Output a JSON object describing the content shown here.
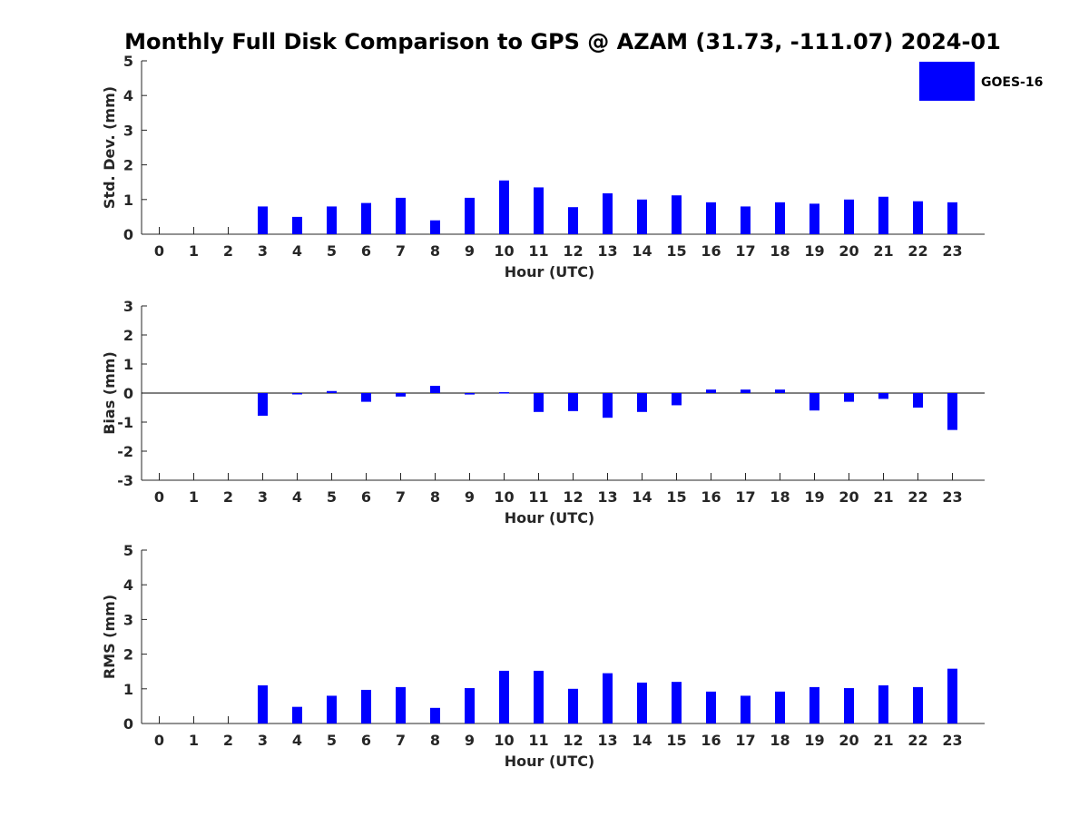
{
  "title": "Monthly Full Disk Comparison to GPS @ AZAM (31.73, -111.07) 2024-01",
  "legend": {
    "label": "GOES-16",
    "color": "#0000ff"
  },
  "chart_data": [
    {
      "type": "bar",
      "xlabel": "Hour (UTC)",
      "ylabel": "Std. Dev. (mm)",
      "ylim": [
        0,
        5
      ],
      "yticks": [
        0,
        1,
        2,
        3,
        4,
        5
      ],
      "categories": [
        0,
        1,
        2,
        3,
        4,
        5,
        6,
        7,
        8,
        9,
        10,
        11,
        12,
        13,
        14,
        15,
        16,
        17,
        18,
        19,
        20,
        21,
        22,
        23
      ],
      "series": [
        {
          "name": "GOES-16",
          "values": [
            null,
            null,
            null,
            0.8,
            0.5,
            0.8,
            0.9,
            1.05,
            0.4,
            1.05,
            1.55,
            1.35,
            0.78,
            1.18,
            1.0,
            1.12,
            0.92,
            0.8,
            0.92,
            0.88,
            1.0,
            1.08,
            0.95,
            0.92
          ]
        }
      ],
      "legend": "top-right"
    },
    {
      "type": "bar",
      "xlabel": "Hour (UTC)",
      "ylabel": "Bias (mm)",
      "ylim": [
        -3,
        3
      ],
      "yticks": [
        -3,
        -2,
        -1,
        0,
        1,
        2,
        3
      ],
      "categories": [
        0,
        1,
        2,
        3,
        4,
        5,
        6,
        7,
        8,
        9,
        10,
        11,
        12,
        13,
        14,
        15,
        16,
        17,
        18,
        19,
        20,
        21,
        22,
        23
      ],
      "series": [
        {
          "name": "GOES-16",
          "values": [
            null,
            null,
            null,
            -0.78,
            0.0,
            0.07,
            -0.3,
            -0.12,
            0.25,
            -0.05,
            0.03,
            -0.65,
            -0.62,
            -0.85,
            -0.65,
            -0.42,
            0.12,
            0.12,
            0.12,
            -0.6,
            -0.3,
            -0.2,
            -0.5,
            -1.27
          ]
        }
      ]
    },
    {
      "type": "bar",
      "xlabel": "Hour (UTC)",
      "ylabel": "RMS (mm)",
      "ylim": [
        0,
        5
      ],
      "yticks": [
        0,
        1,
        2,
        3,
        4,
        5
      ],
      "categories": [
        0,
        1,
        2,
        3,
        4,
        5,
        6,
        7,
        8,
        9,
        10,
        11,
        12,
        13,
        14,
        15,
        16,
        17,
        18,
        19,
        20,
        21,
        22,
        23
      ],
      "series": [
        {
          "name": "GOES-16",
          "values": [
            null,
            null,
            null,
            1.1,
            0.48,
            0.8,
            0.97,
            1.05,
            0.45,
            1.02,
            1.52,
            1.52,
            1.0,
            1.45,
            1.18,
            1.2,
            0.92,
            0.8,
            0.92,
            1.05,
            1.02,
            1.1,
            1.05,
            1.58
          ]
        }
      ]
    }
  ]
}
